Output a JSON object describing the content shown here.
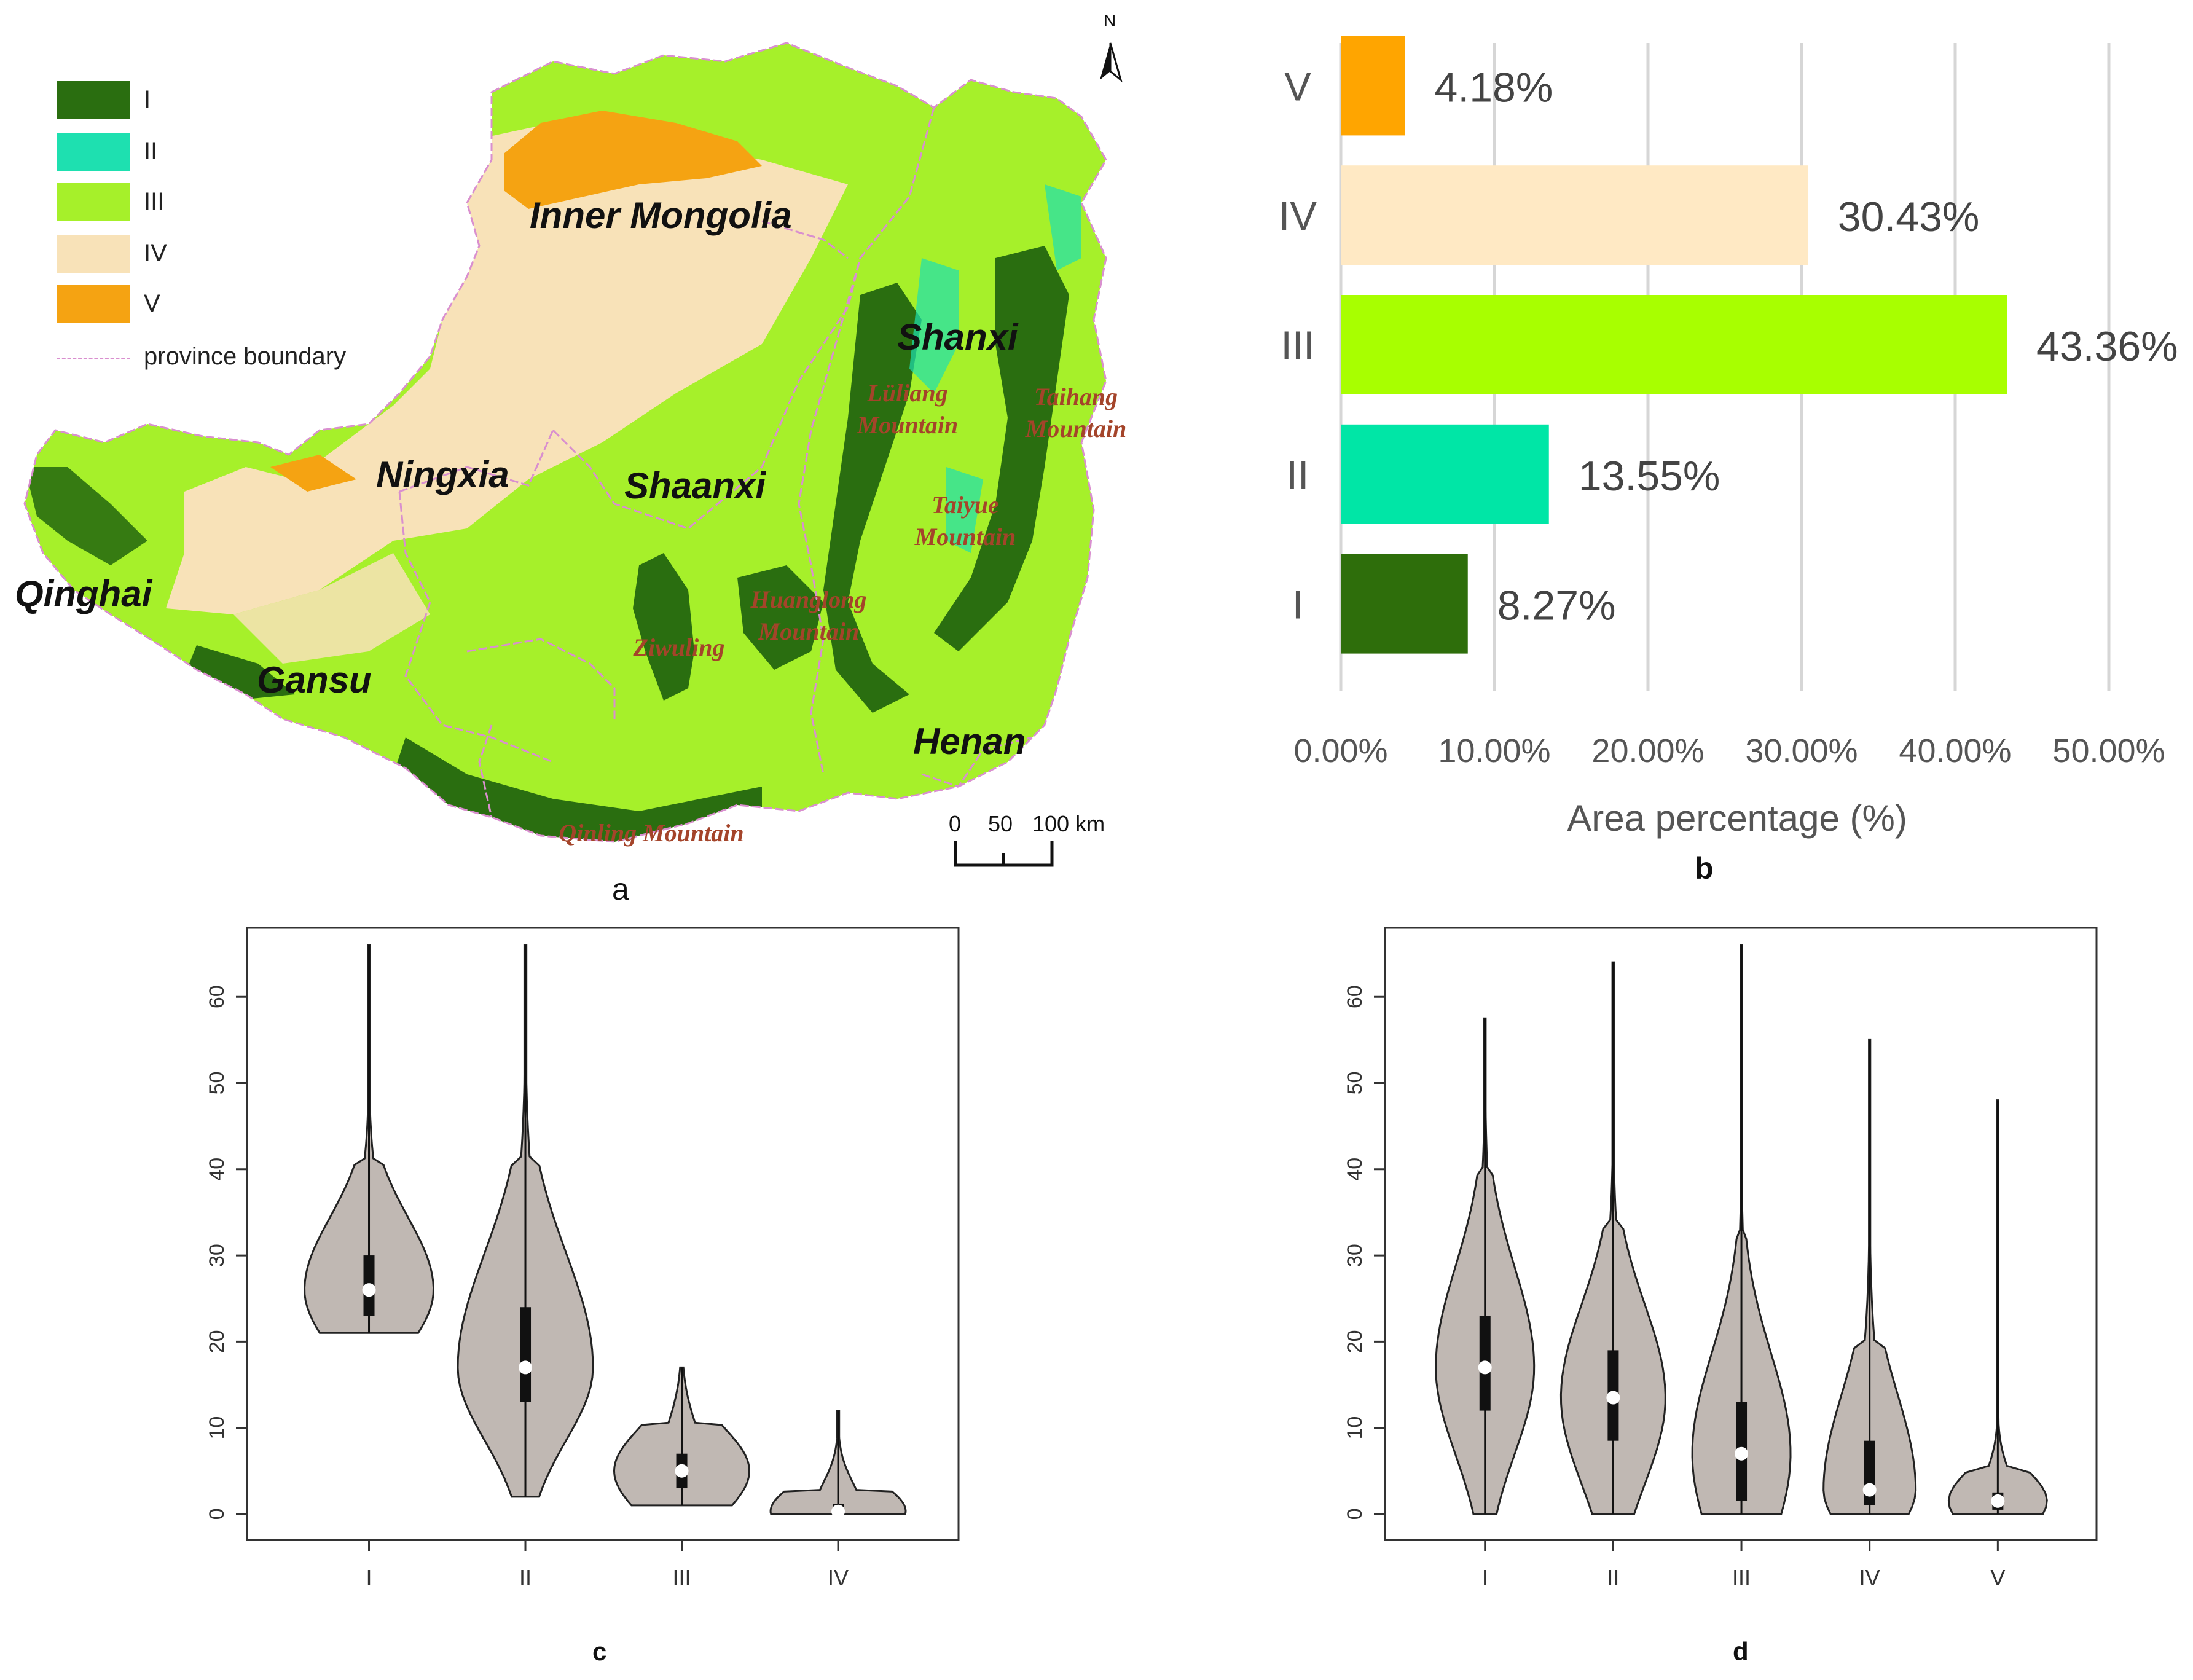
{
  "panel_a": {
    "label": "a",
    "legend": [
      {
        "label": "I",
        "color": "#2a6e10"
      },
      {
        "label": "II",
        "color": "#1ee0b0"
      },
      {
        "label": "III",
        "color": "#a6f02a"
      },
      {
        "label": "IV",
        "color": "#f8e2b8"
      },
      {
        "label": "V",
        "color": "#f5a312"
      },
      {
        "label": "province boundary",
        "color": "#d98fcf"
      }
    ],
    "north": "N",
    "regions": [
      "Inner Mongolia",
      "Ningxia",
      "Shaanxi",
      "Shanxi",
      "Qinghai",
      "Gansu",
      "Henan"
    ],
    "mountains": [
      "Lüliang Mountain",
      "Taihang Mountain",
      "Taiyue Mountain",
      "Huanglong Mountain",
      "Ziwuling",
      "Qinling Mountain"
    ],
    "scale": {
      "ticks": [
        "0",
        "50",
        "100 km"
      ]
    }
  },
  "panel_b": {
    "label": "b"
  },
  "panel_c": {
    "label": "c"
  },
  "panel_d": {
    "label": "d"
  },
  "chart_data": [
    {
      "type": "bar",
      "panel": "b",
      "orientation": "horizontal",
      "categories": [
        "V",
        "IV",
        "III",
        "II",
        "I"
      ],
      "values": [
        4.18,
        30.43,
        43.36,
        13.55,
        8.27
      ],
      "value_labels": [
        "4.18%",
        "30.43%",
        "43.36%",
        "13.55%",
        "8.27%"
      ],
      "colors": [
        "#ffa500",
        "#ffe9c4",
        "#a8ff00",
        "#00e6a6",
        "#2e6e0b"
      ],
      "xlabel": "Area percentage (%)",
      "xlim": [
        0,
        50
      ],
      "xticks": [
        "0.00%",
        "10.00%",
        "20.00%",
        "30.00%",
        "40.00%",
        "50.00%"
      ],
      "grid": true
    },
    {
      "type": "violin",
      "panel": "c",
      "categories": [
        "I",
        "II",
        "III",
        "IV"
      ],
      "ylim": [
        -3,
        68
      ],
      "yticks": [
        "0",
        "10",
        "20",
        "30",
        "40",
        "50",
        "60"
      ],
      "fill": "#c0b8b3",
      "series": [
        {
          "name": "I",
          "min": 21,
          "q1": 23,
          "median": 26,
          "q3": 30,
          "max": 66,
          "whisker_high": 40.5
        },
        {
          "name": "II",
          "min": 2,
          "q1": 13,
          "median": 17,
          "q3": 24,
          "max": 66,
          "whisker_high": 40.5
        },
        {
          "name": "III",
          "min": 1,
          "q1": 3,
          "median": 5,
          "q3": 7,
          "max": 17,
          "whisker_high": 10.5
        },
        {
          "name": "IV",
          "min": 0,
          "q1": 0,
          "median": 0.3,
          "q3": 1.2,
          "max": 12,
          "whisker_high": 2.6
        }
      ]
    },
    {
      "type": "violin",
      "panel": "d",
      "categories": [
        "I",
        "II",
        "III",
        "IV",
        "V"
      ],
      "ylim": [
        -3,
        68
      ],
      "yticks": [
        "0",
        "10",
        "20",
        "30",
        "40",
        "50",
        "60"
      ],
      "fill": "#c0b8b3",
      "series": [
        {
          "name": "I",
          "min": 0,
          "q1": 12,
          "median": 17,
          "q3": 23,
          "max": 57.5,
          "whisker_high": 40
        },
        {
          "name": "II",
          "min": 0,
          "q1": 8.5,
          "median": 13.5,
          "q3": 19,
          "max": 64,
          "whisker_high": 34
        },
        {
          "name": "III",
          "min": 0,
          "q1": 1.5,
          "median": 7,
          "q3": 13,
          "max": 66,
          "whisker_high": 32
        },
        {
          "name": "IV",
          "min": 0,
          "q1": 1,
          "median": 2.8,
          "q3": 8.5,
          "max": 55,
          "whisker_high": 19.5
        },
        {
          "name": "V",
          "min": 0,
          "q1": 0.5,
          "median": 1.5,
          "q3": 2.5,
          "max": 48,
          "whisker_high": 5
        }
      ]
    }
  ]
}
